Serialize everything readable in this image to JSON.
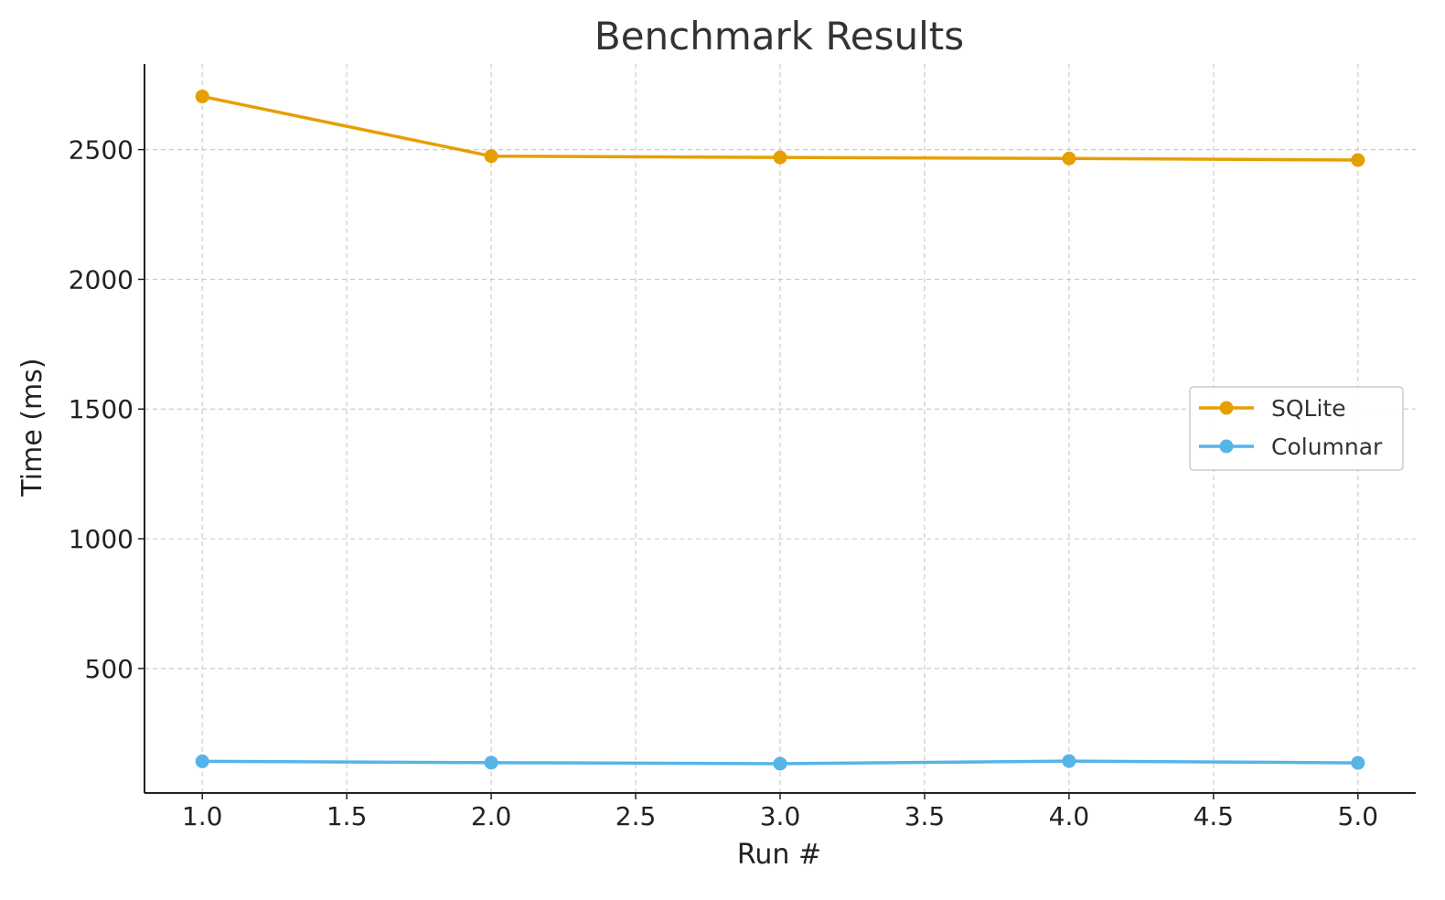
{
  "chart_data": {
    "type": "line",
    "title": "Benchmark Results",
    "xlabel": "Run #",
    "ylabel": "Time (ms)",
    "xlim": [
      0.8,
      5.2
    ],
    "ylim": [
      20,
      2830
    ],
    "x_ticks": [
      1.0,
      1.5,
      2.0,
      2.5,
      3.0,
      3.5,
      4.0,
      4.5,
      5.0
    ],
    "x_tick_labels": [
      "1.0",
      "1.5",
      "2.0",
      "2.5",
      "3.0",
      "3.5",
      "4.0",
      "4.5",
      "5.0"
    ],
    "y_ticks": [
      500,
      1000,
      1500,
      2000,
      2500
    ],
    "y_tick_labels": [
      "500",
      "1000",
      "1500",
      "2000",
      "2500"
    ],
    "grid": true,
    "legend_position": "center-right",
    "series": [
      {
        "name": "SQLite",
        "color": "#E69F00",
        "marker": "circle",
        "x": [
          1,
          2,
          3,
          4,
          5
        ],
        "y": [
          2705,
          2475,
          2470,
          2466,
          2460
        ]
      },
      {
        "name": "Columnar",
        "color": "#56B4E9",
        "marker": "circle",
        "x": [
          1,
          2,
          3,
          4,
          5
        ],
        "y": [
          142,
          137,
          133,
          143,
          136
        ]
      }
    ]
  }
}
